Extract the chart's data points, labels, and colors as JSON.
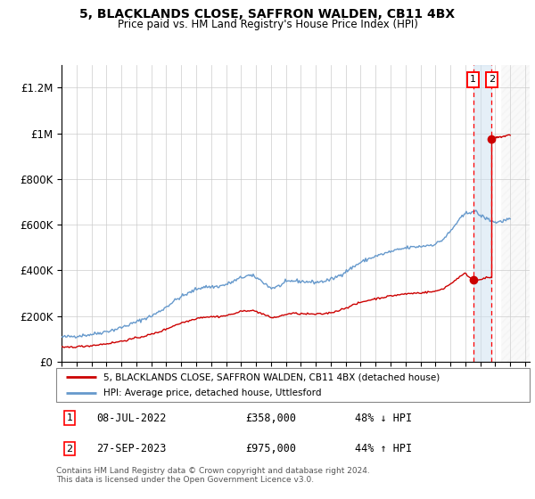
{
  "title1": "5, BLACKLANDS CLOSE, SAFFRON WALDEN, CB11 4BX",
  "title2": "Price paid vs. HM Land Registry's House Price Index (HPI)",
  "ylim": [
    0,
    1300000
  ],
  "xlim_start": 1995.0,
  "xlim_end": 2026.3,
  "yticks": [
    0,
    200000,
    400000,
    600000,
    800000,
    1000000,
    1200000
  ],
  "ytick_labels": [
    "£0",
    "£200K",
    "£400K",
    "£600K",
    "£800K",
    "£1M",
    "£1.2M"
  ],
  "legend1_label": "5, BLACKLANDS CLOSE, SAFFRON WALDEN, CB11 4BX (detached house)",
  "legend2_label": "HPI: Average price, detached house, Uttlesford",
  "transaction1_date": "08-JUL-2022",
  "transaction1_price": 358000,
  "transaction1_x": 2022.52,
  "transaction2_date": "27-SEP-2023",
  "transaction2_price": 975000,
  "transaction2_x": 2023.75,
  "footnote": "Contains HM Land Registry data © Crown copyright and database right 2024.\nThis data is licensed under the Open Government Licence v3.0.",
  "line_red_color": "#cc0000",
  "line_blue_color": "#6699cc",
  "hatch_start": 2024.4,
  "grid_color": "#cccccc",
  "hpi_anchors": [
    [
      1995.0,
      108000
    ],
    [
      1995.5,
      110000
    ],
    [
      1996.0,
      113000
    ],
    [
      1996.5,
      116000
    ],
    [
      1997.0,
      120000
    ],
    [
      1997.5,
      126000
    ],
    [
      1998.0,
      133000
    ],
    [
      1998.5,
      140000
    ],
    [
      1999.0,
      150000
    ],
    [
      1999.5,
      162000
    ],
    [
      2000.0,
      174000
    ],
    [
      2000.5,
      188000
    ],
    [
      2001.0,
      200000
    ],
    [
      2001.5,
      218000
    ],
    [
      2002.0,
      240000
    ],
    [
      2002.5,
      265000
    ],
    [
      2003.0,
      285000
    ],
    [
      2003.5,
      300000
    ],
    [
      2004.0,
      318000
    ],
    [
      2004.5,
      328000
    ],
    [
      2005.0,
      328000
    ],
    [
      2005.5,
      330000
    ],
    [
      2006.0,
      338000
    ],
    [
      2006.5,
      352000
    ],
    [
      2007.0,
      368000
    ],
    [
      2007.5,
      378000
    ],
    [
      2008.0,
      370000
    ],
    [
      2008.5,
      348000
    ],
    [
      2009.0,
      322000
    ],
    [
      2009.5,
      330000
    ],
    [
      2010.0,
      348000
    ],
    [
      2010.5,
      355000
    ],
    [
      2011.0,
      352000
    ],
    [
      2011.5,
      350000
    ],
    [
      2012.0,
      348000
    ],
    [
      2012.5,
      352000
    ],
    [
      2013.0,
      360000
    ],
    [
      2013.5,
      375000
    ],
    [
      2014.0,
      395000
    ],
    [
      2014.5,
      415000
    ],
    [
      2015.0,
      435000
    ],
    [
      2015.5,
      450000
    ],
    [
      2016.0,
      462000
    ],
    [
      2016.5,
      472000
    ],
    [
      2017.0,
      482000
    ],
    [
      2017.5,
      490000
    ],
    [
      2018.0,
      498000
    ],
    [
      2018.5,
      502000
    ],
    [
      2019.0,
      505000
    ],
    [
      2019.5,
      510000
    ],
    [
      2020.0,
      515000
    ],
    [
      2020.5,
      535000
    ],
    [
      2021.0,
      570000
    ],
    [
      2021.5,
      615000
    ],
    [
      2022.0,
      648000
    ],
    [
      2022.5,
      660000
    ],
    [
      2022.75,
      655000
    ],
    [
      2023.0,
      640000
    ],
    [
      2023.5,
      625000
    ],
    [
      2023.75,
      618000
    ],
    [
      2024.0,
      610000
    ],
    [
      2024.4,
      615000
    ],
    [
      2024.8,
      622000
    ],
    [
      2025.0,
      625000
    ]
  ],
  "red_anchors_pre": [
    [
      1995.0,
      62000
    ],
    [
      1995.5,
      64000
    ],
    [
      1996.0,
      66000
    ],
    [
      1996.5,
      68000
    ],
    [
      1997.0,
      71000
    ],
    [
      1997.5,
      75000
    ],
    [
      1998.0,
      79000
    ],
    [
      1998.5,
      84000
    ],
    [
      1999.0,
      90000
    ],
    [
      1999.5,
      97000
    ],
    [
      2000.0,
      104000
    ],
    [
      2000.5,
      112000
    ],
    [
      2001.0,
      120000
    ],
    [
      2001.5,
      130000
    ],
    [
      2002.0,
      143000
    ],
    [
      2002.5,
      158000
    ],
    [
      2003.0,
      170000
    ],
    [
      2003.5,
      179000
    ],
    [
      2004.0,
      190000
    ],
    [
      2004.5,
      196000
    ],
    [
      2005.0,
      197000
    ],
    [
      2005.5,
      198000
    ],
    [
      2006.0,
      202000
    ],
    [
      2006.5,
      210000
    ],
    [
      2007.0,
      220000
    ],
    [
      2007.5,
      226000
    ],
    [
      2008.0,
      221000
    ],
    [
      2008.5,
      208000
    ],
    [
      2009.0,
      193000
    ],
    [
      2009.5,
      197000
    ],
    [
      2010.0,
      208000
    ],
    [
      2010.5,
      212000
    ],
    [
      2011.0,
      210000
    ],
    [
      2011.5,
      209000
    ],
    [
      2012.0,
      208000
    ],
    [
      2012.5,
      210000
    ],
    [
      2013.0,
      215000
    ],
    [
      2013.5,
      224000
    ],
    [
      2014.0,
      236000
    ],
    [
      2014.5,
      248000
    ],
    [
      2015.0,
      260000
    ],
    [
      2015.5,
      269000
    ],
    [
      2016.0,
      276000
    ],
    [
      2016.5,
      282000
    ],
    [
      2017.0,
      288000
    ],
    [
      2017.5,
      293000
    ],
    [
      2018.0,
      297000
    ],
    [
      2018.5,
      300000
    ],
    [
      2019.0,
      302000
    ],
    [
      2019.5,
      305000
    ],
    [
      2020.0,
      308000
    ],
    [
      2020.5,
      320000
    ],
    [
      2021.0,
      340000
    ],
    [
      2021.5,
      367000
    ],
    [
      2022.0,
      387000
    ],
    [
      2022.52,
      358000
    ],
    [
      2023.0,
      362000
    ],
    [
      2023.5,
      368000
    ],
    [
      2023.74,
      370000
    ]
  ],
  "red_anchors_post": [
    [
      2023.75,
      975000
    ],
    [
      2024.0,
      980000
    ],
    [
      2024.4,
      985000
    ],
    [
      2024.8,
      990000
    ],
    [
      2025.0,
      995000
    ]
  ]
}
